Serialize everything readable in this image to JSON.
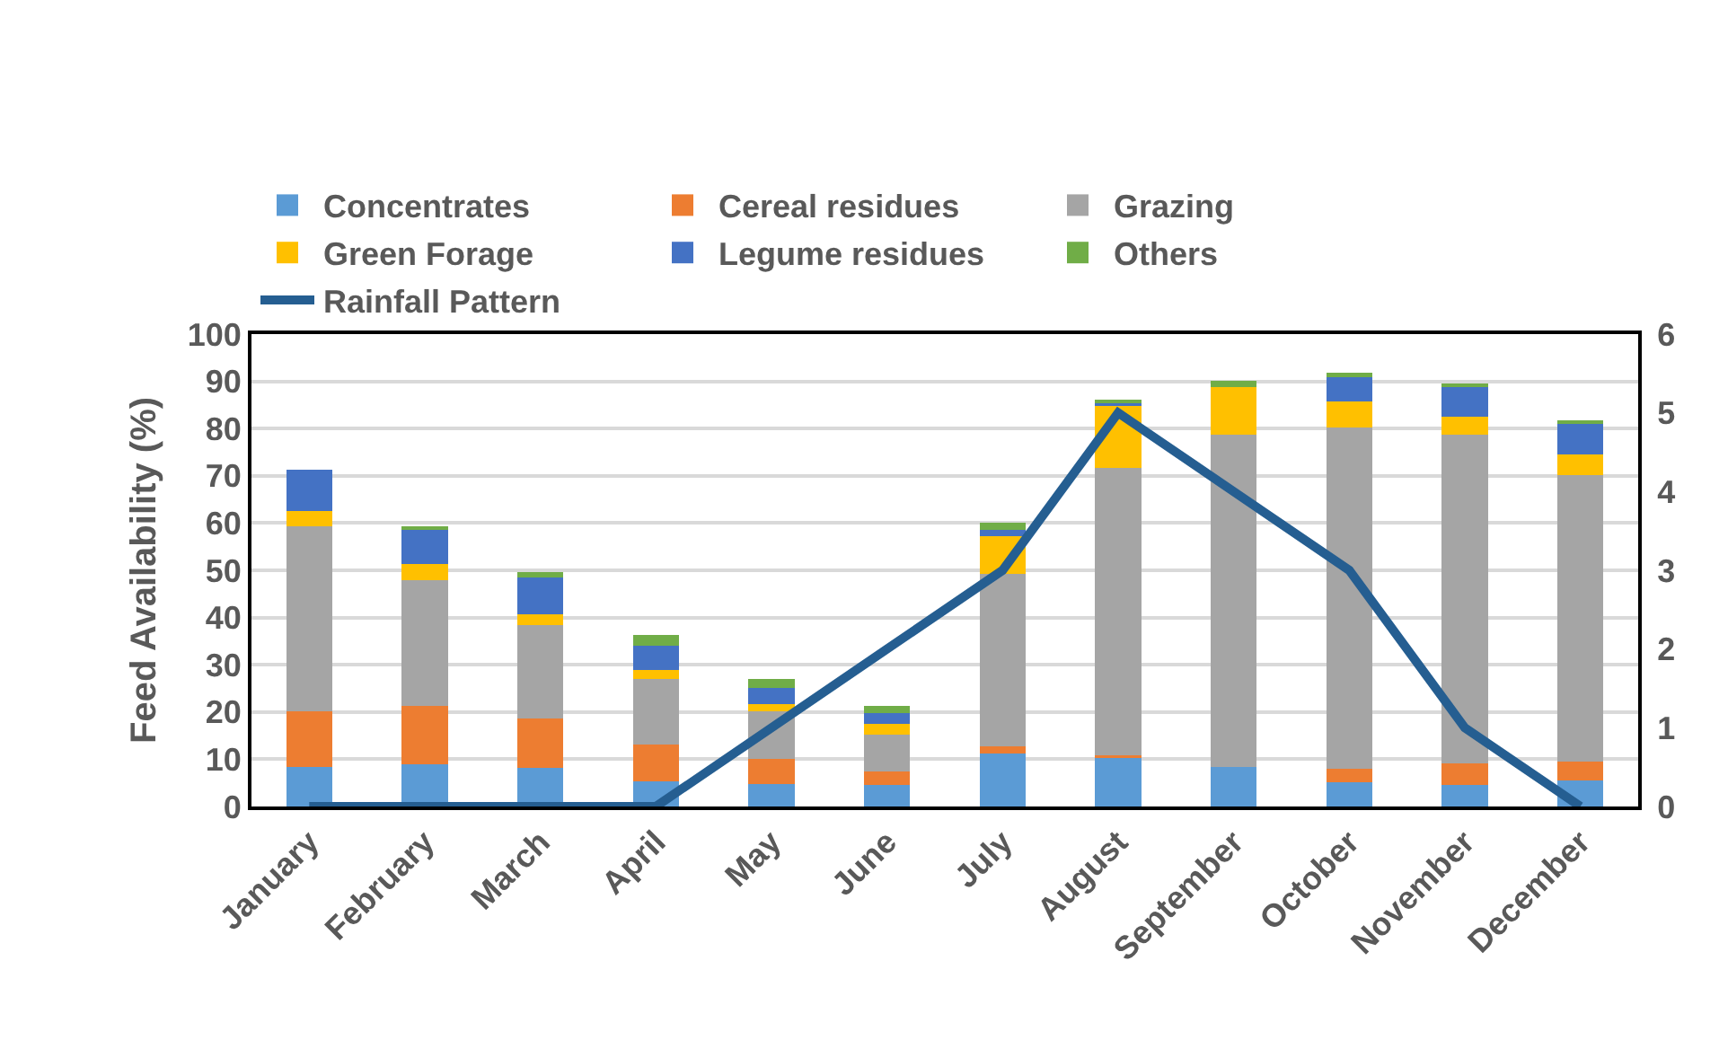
{
  "chart_data": {
    "type": "bar",
    "stacked": true,
    "ylabel": "Feed Availability (%)",
    "categories": [
      "January",
      "February",
      "March",
      "April",
      "May",
      "June",
      "July",
      "August",
      "September",
      "October",
      "November",
      "December"
    ],
    "ylim": [
      0,
      100
    ],
    "yticks": [
      0,
      10,
      20,
      30,
      40,
      50,
      60,
      70,
      80,
      90,
      100
    ],
    "y2lim": [
      0,
      6
    ],
    "y2ticks": [
      0,
      1,
      2,
      3,
      4,
      5,
      6
    ],
    "grid": "y",
    "legend": "top",
    "series": [
      {
        "name": "Concentrates",
        "color": "#5b9bd5",
        "values": [
          8.4,
          8.9,
          8.1,
          5.3,
          4.8,
          4.6,
          11.2,
          10.3,
          8.4,
          5.1,
          4.6,
          5.6
        ]
      },
      {
        "name": "Cereal residues",
        "color": "#ed7d31",
        "values": [
          11.7,
          12.4,
          10.6,
          7.9,
          5.2,
          2.8,
          1.5,
          0.6,
          0,
          2.8,
          4.5,
          4.0
        ]
      },
      {
        "name": "Grazing",
        "color": "#a5a5a5",
        "values": [
          39.3,
          26.7,
          19.8,
          13.8,
          10.1,
          7.8,
          36.5,
          60.7,
          70.4,
          72.4,
          69.7,
          60.6
        ]
      },
      {
        "name": "Green Forage",
        "color": "#ffc000",
        "values": [
          3.2,
          3.3,
          2.2,
          1.9,
          1.5,
          2.3,
          8.0,
          13.3,
          9.9,
          5.5,
          3.8,
          4.4
        ]
      },
      {
        "name": "Legume residues",
        "color": "#4472c4",
        "values": [
          8.7,
          7.3,
          7.7,
          5.2,
          3.5,
          2.3,
          1.4,
          0.4,
          0,
          5.1,
          6.1,
          6.4
        ]
      },
      {
        "name": "Others",
        "color": "#70ad47",
        "values": [
          0,
          0.8,
          1.2,
          2.2,
          1.9,
          1.5,
          1.4,
          0.8,
          1.4,
          1.0,
          0.8,
          0.7
        ]
      },
      {
        "name": "Rainfall Pattern",
        "type": "line",
        "axis": "y2",
        "color": "#255e91",
        "line_style": "solid",
        "values": [
          0,
          0,
          0,
          0,
          1,
          2,
          3,
          5,
          4,
          3,
          1,
          0
        ]
      }
    ]
  }
}
